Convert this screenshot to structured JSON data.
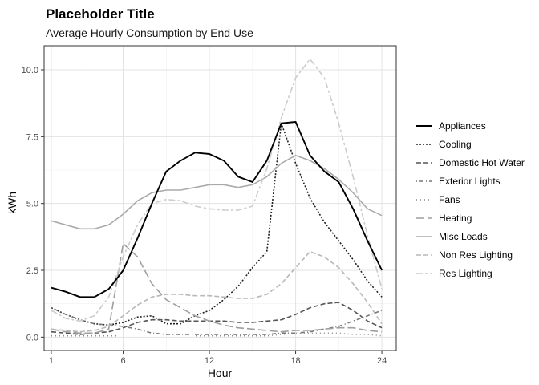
{
  "chart_data": {
    "type": "line",
    "title": "Placeholder Title",
    "subtitle": "Average Hourly Consumption by End Use",
    "xlabel": "Hour",
    "ylabel": "kWh",
    "xlim": [
      0.5,
      25
    ],
    "ylim": [
      -0.5,
      10.9
    ],
    "x_ticks": [
      1,
      6,
      12,
      18,
      24
    ],
    "y_ticks": [
      0.0,
      2.5,
      5.0,
      7.5,
      10.0
    ],
    "y_tick_labels": [
      "0.0",
      "2.5",
      "5.0",
      "7.5",
      "10.0"
    ],
    "grid": true,
    "legend_position": "right",
    "x": [
      1,
      2,
      3,
      4,
      5,
      6,
      7,
      8,
      9,
      10,
      11,
      12,
      13,
      14,
      15,
      16,
      17,
      18,
      19,
      20,
      21,
      22,
      23,
      24
    ],
    "series": [
      {
        "name": "Appliances",
        "color": "#000000",
        "dash": "solid",
        "values": [
          1.85,
          1.7,
          1.5,
          1.5,
          1.8,
          2.5,
          3.7,
          5.0,
          6.2,
          6.6,
          6.9,
          6.85,
          6.6,
          6.0,
          5.8,
          6.6,
          8.0,
          8.05,
          6.8,
          6.2,
          5.8,
          4.8,
          3.6,
          2.5
        ]
      },
      {
        "name": "Cooling",
        "color": "#222222",
        "dash": "dotted",
        "values": [
          1.1,
          0.85,
          0.65,
          0.5,
          0.45,
          0.55,
          0.75,
          0.8,
          0.5,
          0.5,
          0.8,
          1.0,
          1.4,
          1.9,
          2.6,
          3.2,
          8.0,
          6.5,
          5.2,
          4.3,
          3.6,
          2.9,
          2.1,
          1.5
        ]
      },
      {
        "name": "Domestic Hot Water",
        "color": "#555555",
        "dash": "dashed",
        "values": [
          0.2,
          0.15,
          0.1,
          0.15,
          0.2,
          0.35,
          0.55,
          0.65,
          0.65,
          0.6,
          0.6,
          0.6,
          0.6,
          0.55,
          0.55,
          0.6,
          0.65,
          0.85,
          1.1,
          1.25,
          1.3,
          1.0,
          0.6,
          0.35
        ]
      },
      {
        "name": "Exterior Lights",
        "color": "#777777",
        "dash": "dotdash",
        "values": [
          1.1,
          0.85,
          0.65,
          0.5,
          0.45,
          0.4,
          0.3,
          0.15,
          0.1,
          0.1,
          0.1,
          0.1,
          0.1,
          0.1,
          0.1,
          0.1,
          0.15,
          0.15,
          0.2,
          0.3,
          0.4,
          0.6,
          0.8,
          1.0
        ]
      },
      {
        "name": "Fans",
        "color": "#8c8c8c",
        "dash": "dot",
        "values": [
          0.05,
          0.05,
          0.05,
          0.05,
          0.05,
          0.05,
          0.05,
          0.05,
          0.05,
          0.05,
          0.05,
          0.05,
          0.05,
          0.05,
          0.05,
          0.05,
          0.1,
          0.15,
          0.15,
          0.15,
          0.15,
          0.1,
          0.1,
          0.05
        ]
      },
      {
        "name": "Heating",
        "color": "#9f9f9f",
        "dash": "longdash",
        "values": [
          0.3,
          0.2,
          0.15,
          0.15,
          0.3,
          3.5,
          3.0,
          2.0,
          1.4,
          1.1,
          0.8,
          0.6,
          0.45,
          0.35,
          0.3,
          0.25,
          0.2,
          0.25,
          0.25,
          0.3,
          0.35,
          0.35,
          0.25,
          0.2
        ]
      },
      {
        "name": "Misc Loads",
        "color": "#aaaaaa",
        "dash": "solid",
        "values": [
          4.35,
          4.2,
          4.05,
          4.05,
          4.2,
          4.6,
          5.1,
          5.4,
          5.5,
          5.5,
          5.6,
          5.7,
          5.7,
          5.6,
          5.7,
          6.0,
          6.5,
          6.8,
          6.6,
          6.3,
          5.9,
          5.4,
          4.8,
          4.55
        ]
      },
      {
        "name": "Non Res Lighting",
        "color": "#b8b8b8",
        "dash": "dashed",
        "values": [
          0.3,
          0.25,
          0.2,
          0.25,
          0.4,
          0.8,
          1.2,
          1.5,
          1.6,
          1.6,
          1.55,
          1.55,
          1.5,
          1.45,
          1.45,
          1.6,
          2.0,
          2.6,
          3.2,
          3.0,
          2.6,
          2.0,
          1.3,
          0.5
        ]
      },
      {
        "name": "Res Lighting",
        "color": "#cccccc",
        "dash": "twodash",
        "values": [
          1.0,
          0.7,
          0.6,
          0.8,
          1.5,
          3.0,
          4.2,
          5.0,
          5.15,
          5.1,
          4.9,
          4.8,
          4.75,
          4.75,
          4.9,
          6.3,
          8.2,
          9.7,
          10.4,
          9.7,
          8.0,
          6.0,
          3.8,
          1.8
        ]
      }
    ]
  }
}
